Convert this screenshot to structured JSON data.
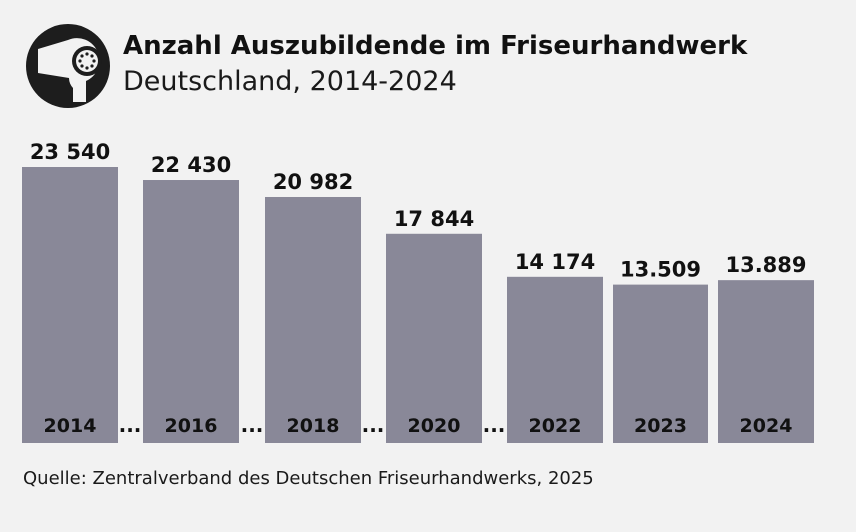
{
  "header": {
    "title": "Anzahl Auszubildende im Friseurhandwerk",
    "subtitle": "Deutschland, 2014-2024",
    "logo_icon": "hair-dryer-icon"
  },
  "colors": {
    "background": "#f2f2f2",
    "bar": "#898898",
    "text": "#111111",
    "logo_circle": "#1d1d1d",
    "logo_fg": "#f2f2f2"
  },
  "chart_data": {
    "type": "bar",
    "title": "Anzahl Auszubildende im Friseurhandwerk",
    "subtitle": "Deutschland, 2014-2024",
    "categories": [
      "2014",
      "2016",
      "2018",
      "2020",
      "2022",
      "2023",
      "2024"
    ],
    "values": [
      23540,
      22430,
      20982,
      17844,
      14174,
      13509,
      13889
    ],
    "value_labels": [
      "23 540",
      "22 430",
      "20 982",
      "17 844",
      "14 174",
      "13.509",
      "13.889"
    ],
    "gap_marker": "...",
    "gaps_after": [
      0,
      1,
      2,
      3
    ],
    "xlabel": "",
    "ylabel": "",
    "ylim": [
      0,
      25000
    ],
    "grid": false,
    "legend": "none"
  },
  "footer": {
    "source": "Quelle: Zentralverband des Deutschen Friseurhandwerks, 2025"
  }
}
